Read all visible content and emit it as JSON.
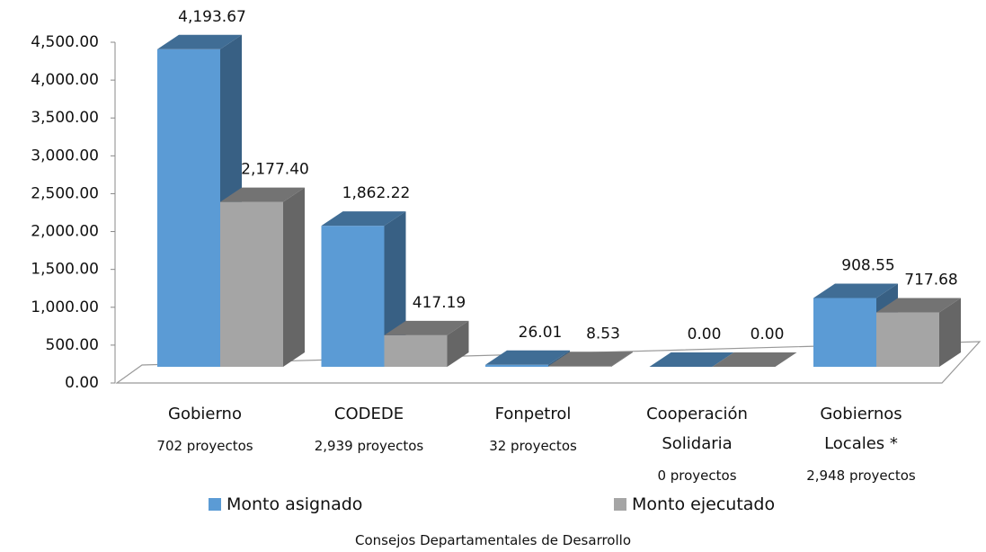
{
  "chart_data": {
    "type": "bar3d",
    "categories": [
      "Gobierno",
      "CODEDE",
      "Fonpetrol",
      "Cooperación Solidaria",
      "Gobiernos Locales *"
    ],
    "category_notes": [
      "702 proyectos",
      "2,939 proyectos",
      "32 proyectos",
      "0 proyectos",
      "2,948 proyectos"
    ],
    "series": [
      {
        "name": "Monto asignado",
        "color": "#5b9bd5",
        "values": [
          4193.67,
          1862.22,
          26.01,
          0.0,
          908.55
        ],
        "value_labels": [
          "4,193.67",
          "1,862.22",
          "26.01",
          "0.00",
          "908.55"
        ]
      },
      {
        "name": "Monto ejecutado",
        "color": "#a5a5a5",
        "values": [
          2177.4,
          417.19,
          8.53,
          0.0,
          717.68
        ],
        "value_labels": [
          "2,177.40",
          "417.19",
          "8.53",
          "0.00",
          "717.68"
        ]
      }
    ],
    "ylim": [
      0,
      4500
    ],
    "yticks": [
      {
        "value": 0,
        "label": "0.00"
      },
      {
        "value": 500,
        "label": "500.00"
      },
      {
        "value": 1000,
        "label": "1,000.00"
      },
      {
        "value": 1500,
        "label": "1,500.00"
      },
      {
        "value": 2000,
        "label": "2,000.00"
      },
      {
        "value": 2500,
        "label": "2,500.00"
      },
      {
        "value": 3000,
        "label": "3,000.00"
      },
      {
        "value": 3500,
        "label": "3,500.00"
      },
      {
        "value": 4000,
        "label": "4,000.00"
      },
      {
        "value": 4500,
        "label": "4,500.00"
      }
    ],
    "x_label": "Consejos Departamentales de Desarrollo"
  }
}
